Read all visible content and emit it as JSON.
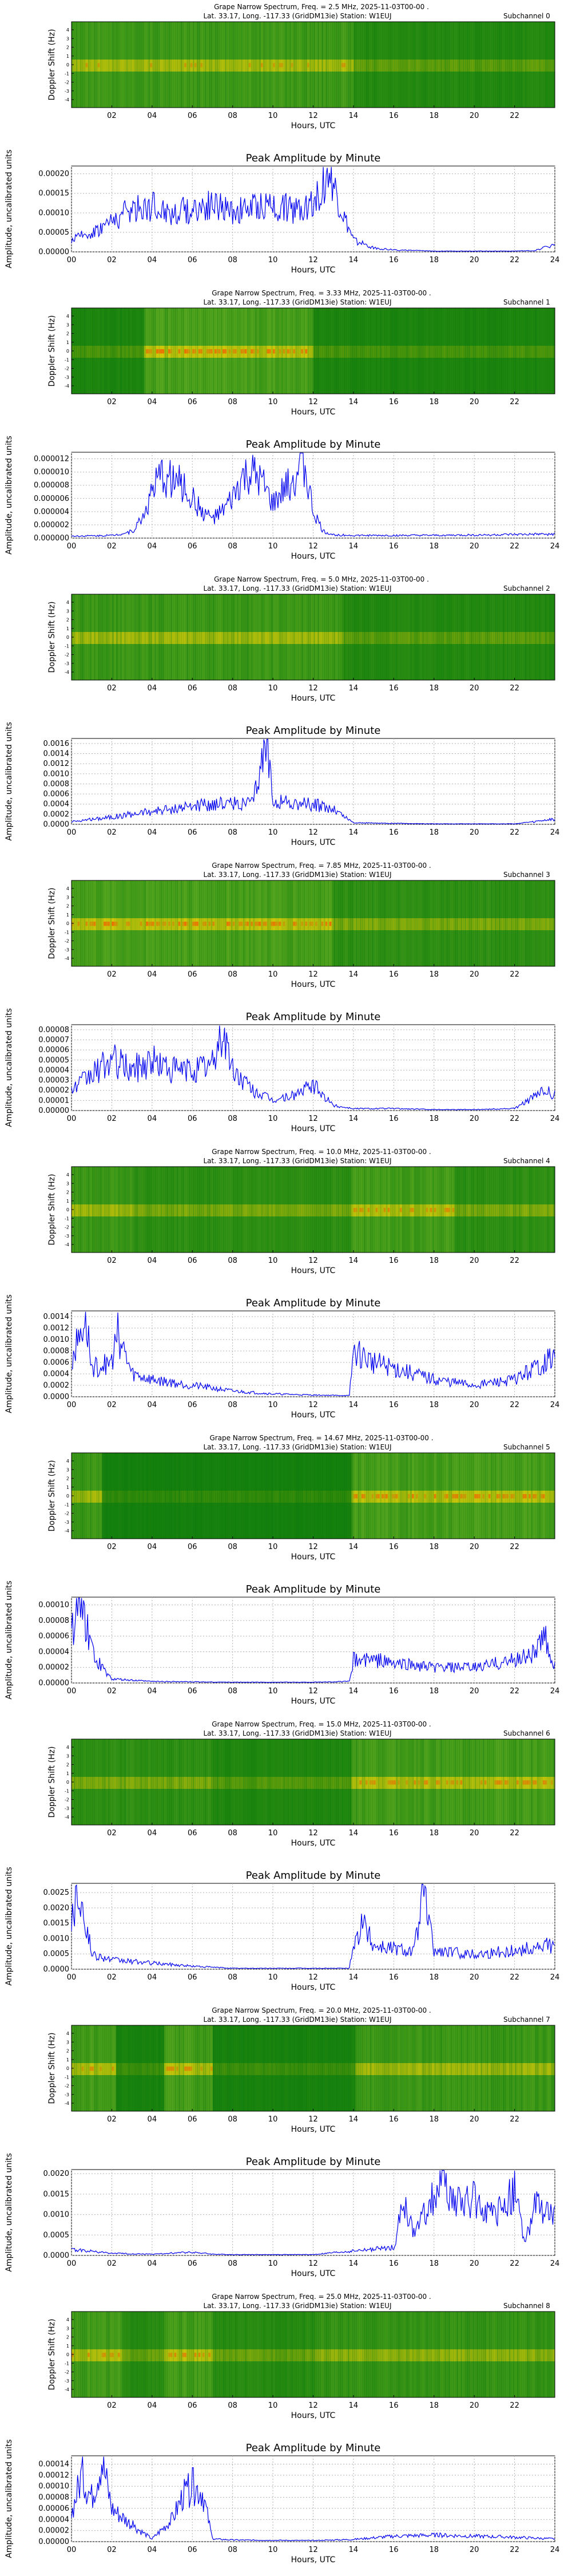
{
  "common": {
    "spec_ylabel": "Doppler Shift (Hz)",
    "spec_yticks": [
      "4",
      "3",
      "2",
      "1",
      "0",
      "-1",
      "-2",
      "-3",
      "-4"
    ],
    "xlabel": "Hours, UTC",
    "spec_xticks": [
      "02",
      "04",
      "06",
      "08",
      "10",
      "12",
      "14",
      "16",
      "18",
      "20",
      "22"
    ],
    "amp_xticks": [
      "00",
      "02",
      "04",
      "06",
      "08",
      "10",
      "12",
      "14",
      "16",
      "18",
      "20",
      "22",
      "24"
    ],
    "amp_title": "Peak Amplitude by Minute",
    "amp_ylabel": "Amplitude, uncalibrated units",
    "subtitle": "Lat.  33.17, Long. -117.33 (GridDM13ie) Station: W1EUJ",
    "colors": {
      "line": "#0000ee",
      "spec_bg": "#0a7a0a",
      "spec_mid": "#9acd32",
      "spec_hot": "#ff3300",
      "grid": "#b0b0b0"
    }
  },
  "panels": [
    {
      "title": "Grape Narrow Spectrum, Freq. = 2.5 MHz, 2025-11-03T00-00 .",
      "subchannel": "Subchannel 0",
      "yticks": [
        "0.00000",
        "0.00005",
        "0.00010",
        "0.00015",
        "0.00020"
      ],
      "ymax": 0.00022
    },
    {
      "title": "Grape Narrow Spectrum, Freq. = 3.33 MHz, 2025-11-03T00-00 .",
      "subchannel": "Subchannel 1",
      "yticks": [
        "0.000000",
        "0.000002",
        "0.000004",
        "0.000006",
        "0.000008",
        "0.000010",
        "0.000012"
      ],
      "ymax": 1.3e-05
    },
    {
      "title": "Grape Narrow Spectrum, Freq. = 5.0 MHz, 2025-11-03T00-00 .",
      "subchannel": "Subchannel 2",
      "yticks": [
        "0.0000",
        "0.0002",
        "0.0004",
        "0.0006",
        "0.0008",
        "0.0010",
        "0.0012",
        "0.0014",
        "0.0016"
      ],
      "ymax": 0.0017
    },
    {
      "title": "Grape Narrow Spectrum, Freq. = 7.85 MHz, 2025-11-03T00-00 .",
      "subchannel": "Subchannel 3",
      "yticks": [
        "0.00000",
        "0.00001",
        "0.00002",
        "0.00003",
        "0.00004",
        "0.00005",
        "0.00006",
        "0.00007",
        "0.00008"
      ],
      "ymax": 8.5e-05
    },
    {
      "title": "Grape Narrow Spectrum, Freq. = 10.0 MHz, 2025-11-03T00-00 .",
      "subchannel": "Subchannel 4",
      "yticks": [
        "0.0000",
        "0.0002",
        "0.0004",
        "0.0006",
        "0.0008",
        "0.0010",
        "0.0012",
        "0.0014"
      ],
      "ymax": 0.0015
    },
    {
      "title": "Grape Narrow Spectrum, Freq. = 14.67 MHz, 2025-11-03T00-00 .",
      "subchannel": "Subchannel 5",
      "yticks": [
        "0.00000",
        "0.00002",
        "0.00004",
        "0.00006",
        "0.00008",
        "0.00010"
      ],
      "ymax": 0.00011
    },
    {
      "title": "Grape Narrow Spectrum, Freq. = 15.0 MHz, 2025-11-03T00-00 .",
      "subchannel": "Subchannel 6",
      "yticks": [
        "0.0000",
        "0.0005",
        "0.0010",
        "0.0015",
        "0.0020",
        "0.0025"
      ],
      "ymax": 0.0028
    },
    {
      "title": "Grape Narrow Spectrum, Freq. = 20.0 MHz, 2025-11-03T00-00 .",
      "subchannel": "Subchannel 7",
      "yticks": [
        "0.0000",
        "0.0005",
        "0.0010",
        "0.0015",
        "0.0020"
      ],
      "ymax": 0.0021
    },
    {
      "title": "Grape Narrow Spectrum, Freq. = 25.0 MHz, 2025-11-03T00-00 .",
      "subchannel": "Subchannel 8",
      "yticks": [
        "0.00000",
        "0.00002",
        "0.00004",
        "0.00006",
        "0.00008",
        "0.00010",
        "0.00012",
        "0.00014"
      ],
      "ymax": 0.000155
    }
  ],
  "chart_data": [
    {
      "type": "heatmap",
      "title": "Grape Narrow Spectrum, Freq. = 2.5 MHz, 2025-11-03T00-00 .",
      "xlabel": "Hours, UTC",
      "ylabel": "Doppler Shift (Hz)",
      "xlim": [
        0,
        24
      ],
      "ylim": [
        -5,
        5
      ]
    },
    {
      "type": "line",
      "title": "Peak Amplitude by Minute",
      "xlabel": "Hours, UTC",
      "ylabel": "Amplitude, uncalibrated units",
      "xlim": [
        0,
        24
      ],
      "ylim": [
        0,
        0.00022
      ],
      "series": [
        {
          "x": [
            0,
            1,
            2,
            3,
            4,
            5,
            6,
            7,
            8,
            9,
            10,
            11,
            12,
            12.8,
            13.5,
            14,
            15,
            16,
            18,
            20,
            22,
            23,
            24
          ],
          "values": [
            3e-05,
            5e-05,
            8e-05,
            0.00011,
            0.00012,
            0.0001,
            0.00011,
            0.00012,
            0.0001,
            0.00011,
            0.00012,
            0.00011,
            0.00013,
            0.0002,
            9e-05,
            3e-05,
            1e-05,
            5e-06,
            2e-06,
            2e-06,
            2e-06,
            3e-06,
            2e-05
          ]
        }
      ]
    },
    {
      "type": "heatmap",
      "title": "Grape Narrow Spectrum, Freq. = 3.33 MHz, 2025-11-03T00-00 .",
      "xlabel": "Hours, UTC",
      "ylabel": "Doppler Shift (Hz)",
      "xlim": [
        0,
        24
      ],
      "ylim": [
        -5,
        5
      ]
    },
    {
      "type": "line",
      "title": "Peak Amplitude by Minute",
      "xlabel": "Hours, UTC",
      "ylabel": "Amplitude, uncalibrated units",
      "xlim": [
        0,
        24
      ],
      "ylim": [
        0,
        1.3e-05
      ],
      "series": [
        {
          "x": [
            0,
            2,
            3,
            3.5,
            4,
            4.5,
            5,
            5.5,
            6,
            6.5,
            7,
            7.5,
            8,
            8.5,
            9,
            9.5,
            10,
            10.5,
            11,
            11.5,
            12,
            12.5,
            13,
            14,
            18,
            24
          ],
          "values": [
            3e-07,
            4e-07,
            1e-06,
            3e-06,
            7e-06,
            9.5e-06,
            9e-06,
            8e-06,
            6e-06,
            4e-06,
            3e-06,
            4e-06,
            6e-06,
            9e-06,
            9.5e-06,
            8e-06,
            5e-06,
            7e-06,
            9e-06,
            1.2e-05,
            4e-06,
            1e-06,
            5e-07,
            4e-07,
            4e-07,
            6e-07
          ]
        }
      ]
    },
    {
      "type": "heatmap",
      "title": "Grape Narrow Spectrum, Freq. = 5.0 MHz, 2025-11-03T00-00 .",
      "xlabel": "Hours, UTC",
      "ylabel": "Doppler Shift (Hz)",
      "xlim": [
        0,
        24
      ],
      "ylim": [
        -5,
        5
      ]
    },
    {
      "type": "line",
      "title": "Peak Amplitude by Minute",
      "xlabel": "Hours, UTC",
      "ylabel": "Amplitude, uncalibrated units",
      "xlim": [
        0,
        24
      ],
      "ylim": [
        0,
        0.0017
      ],
      "series": [
        {
          "x": [
            0,
            1,
            2,
            3,
            4,
            5,
            6,
            7,
            8,
            9,
            9.7,
            10,
            11,
            12,
            13,
            14,
            16,
            18,
            20,
            22,
            23,
            24
          ],
          "values": [
            5e-05,
            0.0001,
            0.00015,
            0.0002,
            0.00025,
            0.0003,
            0.00035,
            0.0004,
            0.00042,
            0.0004,
            0.0016,
            0.0005,
            0.0004,
            0.0004,
            0.0003,
            3e-05,
            2e-05,
            1e-05,
            1e-05,
            1e-05,
            5e-05,
            0.0001
          ]
        }
      ]
    },
    {
      "type": "heatmap",
      "title": "Grape Narrow Spectrum, Freq. = 7.85 MHz, 2025-11-03T00-00 .",
      "xlabel": "Hours, UTC",
      "ylabel": "Doppler Shift (Hz)",
      "xlim": [
        0,
        24
      ],
      "ylim": [
        -5,
        5
      ]
    },
    {
      "type": "line",
      "title": "Peak Amplitude by Minute",
      "xlabel": "Hours, UTC",
      "ylabel": "Amplitude, uncalibrated units",
      "xlim": [
        0,
        24
      ],
      "ylim": [
        0,
        8.5e-05
      ],
      "series": [
        {
          "x": [
            0,
            1,
            2,
            3,
            4,
            5,
            6,
            7,
            7.5,
            8,
            9,
            10,
            11,
            12,
            13,
            14,
            16,
            18,
            20,
            22,
            23.5,
            24
          ],
          "values": [
            2e-05,
            3.5e-05,
            5e-05,
            4e-05,
            5e-05,
            4e-05,
            4e-05,
            4.5e-05,
            8e-05,
            4e-05,
            2e-05,
            1e-05,
            1.5e-05,
            2.5e-05,
            5e-06,
            2e-06,
            2e-06,
            1e-06,
            1e-06,
            2e-06,
            2e-05,
            1.5e-05
          ]
        }
      ]
    },
    {
      "type": "heatmap",
      "title": "Grape Narrow Spectrum, Freq. = 10.0 MHz, 2025-11-03T00-00 .",
      "xlabel": "Hours, UTC",
      "ylabel": "Doppler Shift (Hz)",
      "xlim": [
        0,
        24
      ],
      "ylim": [
        -5,
        5
      ]
    },
    {
      "type": "line",
      "title": "Peak Amplitude by Minute",
      "xlabel": "Hours, UTC",
      "ylabel": "Amplitude, uncalibrated units",
      "xlim": [
        0,
        24
      ],
      "ylim": [
        0,
        0.0015
      ],
      "series": [
        {
          "x": [
            0,
            0.7,
            1,
            2,
            2.3,
            3,
            4,
            6,
            8,
            10,
            12,
            13.8,
            14,
            15,
            16,
            17,
            18,
            20,
            22,
            23,
            24
          ],
          "values": [
            0.0006,
            0.0014,
            0.0005,
            0.0006,
            0.0011,
            0.0004,
            0.0003,
            0.0002,
            0.0001,
            5e-05,
            3e-05,
            2e-05,
            0.0008,
            0.0006,
            0.0005,
            0.0004,
            0.0003,
            0.0002,
            0.0003,
            0.0005,
            0.0007
          ]
        }
      ]
    },
    {
      "type": "heatmap",
      "title": "Grape Narrow Spectrum, Freq. = 14.67 MHz, 2025-11-03T00-00 .",
      "xlabel": "Hours, UTC",
      "ylabel": "Doppler Shift (Hz)",
      "xlim": [
        0,
        24
      ],
      "ylim": [
        -5,
        5
      ]
    },
    {
      "type": "line",
      "title": "Peak Amplitude by Minute",
      "xlabel": "Hours, UTC",
      "ylabel": "Amplitude, uncalibrated units",
      "xlim": [
        0,
        24
      ],
      "ylim": [
        0,
        0.00011
      ],
      "series": [
        {
          "x": [
            0,
            0.3,
            0.7,
            1,
            1.5,
            2,
            4,
            8,
            12,
            13.8,
            14,
            15,
            16,
            18,
            20,
            22,
            23,
            23.5,
            24
          ],
          "values": [
            6e-05,
            0.0001,
            8e-05,
            4e-05,
            2e-05,
            5e-06,
            2e-06,
            1e-06,
            1e-06,
            2e-06,
            3e-05,
            3e-05,
            2.5e-05,
            2e-05,
            2e-05,
            3e-05,
            4e-05,
            6e-05,
            2e-05
          ]
        }
      ]
    },
    {
      "type": "heatmap",
      "title": "Grape Narrow Spectrum, Freq. = 15.0 MHz, 2025-11-03T00-00 .",
      "xlabel": "Hours, UTC",
      "ylabel": "Doppler Shift (Hz)",
      "xlim": [
        0,
        24
      ],
      "ylim": [
        -5,
        5
      ]
    },
    {
      "type": "line",
      "title": "Peak Amplitude by Minute",
      "xlabel": "Hours, UTC",
      "ylabel": "Amplitude, uncalibrated units",
      "xlim": [
        0,
        24
      ],
      "ylim": [
        0,
        0.0028
      ],
      "series": [
        {
          "x": [
            0,
            0.3,
            0.6,
            1,
            2,
            4,
            6,
            8,
            12,
            13.8,
            14,
            14.5,
            15,
            16,
            17,
            17.5,
            18,
            20,
            22,
            24
          ],
          "values": [
            0.0015,
            0.0027,
            0.0019,
            0.0005,
            0.0003,
            0.0002,
            0.0001,
            3e-05,
            3e-05,
            3e-05,
            0.0008,
            0.0015,
            0.0008,
            0.0007,
            0.0006,
            0.0025,
            0.0006,
            0.0005,
            0.0006,
            0.0008
          ]
        }
      ]
    },
    {
      "type": "heatmap",
      "title": "Grape Narrow Spectrum, Freq. = 20.0 MHz, 2025-11-03T00-00 .",
      "xlabel": "Hours, UTC",
      "ylabel": "Doppler Shift (Hz)",
      "xlim": [
        0,
        24
      ],
      "ylim": [
        -5,
        5
      ]
    },
    {
      "type": "line",
      "title": "Peak Amplitude by Minute",
      "xlabel": "Hours, UTC",
      "ylabel": "Amplitude, uncalibrated units",
      "xlim": [
        0,
        24
      ],
      "ylim": [
        0,
        0.0021
      ],
      "series": [
        {
          "x": [
            0,
            1,
            2,
            4,
            6,
            7,
            8,
            12,
            16,
            16.5,
            17,
            18,
            18.5,
            19,
            20,
            21,
            22,
            22.5,
            23,
            24
          ],
          "values": [
            0.00015,
            0.0001,
            5e-05,
            3e-05,
            8e-05,
            3e-05,
            2e-05,
            2e-05,
            0.0002,
            0.0013,
            0.0005,
            0.0015,
            0.0019,
            0.0012,
            0.0014,
            0.0009,
            0.0016,
            0.0003,
            0.0012,
            0.0009
          ]
        }
      ]
    },
    {
      "type": "heatmap",
      "title": "Grape Narrow Spectrum, Freq. = 25.0 MHz, 2025-11-03T00-00 .",
      "xlabel": "Hours, UTC",
      "ylabel": "Doppler Shift (Hz)",
      "xlim": [
        0,
        24
      ],
      "ylim": [
        -5,
        5
      ]
    },
    {
      "type": "line",
      "title": "Peak Amplitude by Minute",
      "xlabel": "Hours, UTC",
      "ylabel": "Amplitude, uncalibrated units",
      "xlim": [
        0,
        24
      ],
      "ylim": [
        0,
        0.000155
      ],
      "series": [
        {
          "x": [
            0,
            0.5,
            1,
            1.5,
            2,
            3,
            4,
            5,
            5.5,
            6,
            6.5,
            7,
            8,
            12,
            14,
            16,
            18,
            20,
            22,
            24
          ],
          "values": [
            5e-05,
            0.00012,
            8e-05,
            0.00015,
            6e-05,
            3e-05,
            5e-06,
            4e-05,
            8e-05,
            0.0001,
            9e-05,
            5e-06,
            3e-06,
            2e-06,
            4e-06,
            1e-05,
            1.2e-05,
            1e-05,
            8e-06,
            5e-06
          ]
        }
      ]
    }
  ]
}
